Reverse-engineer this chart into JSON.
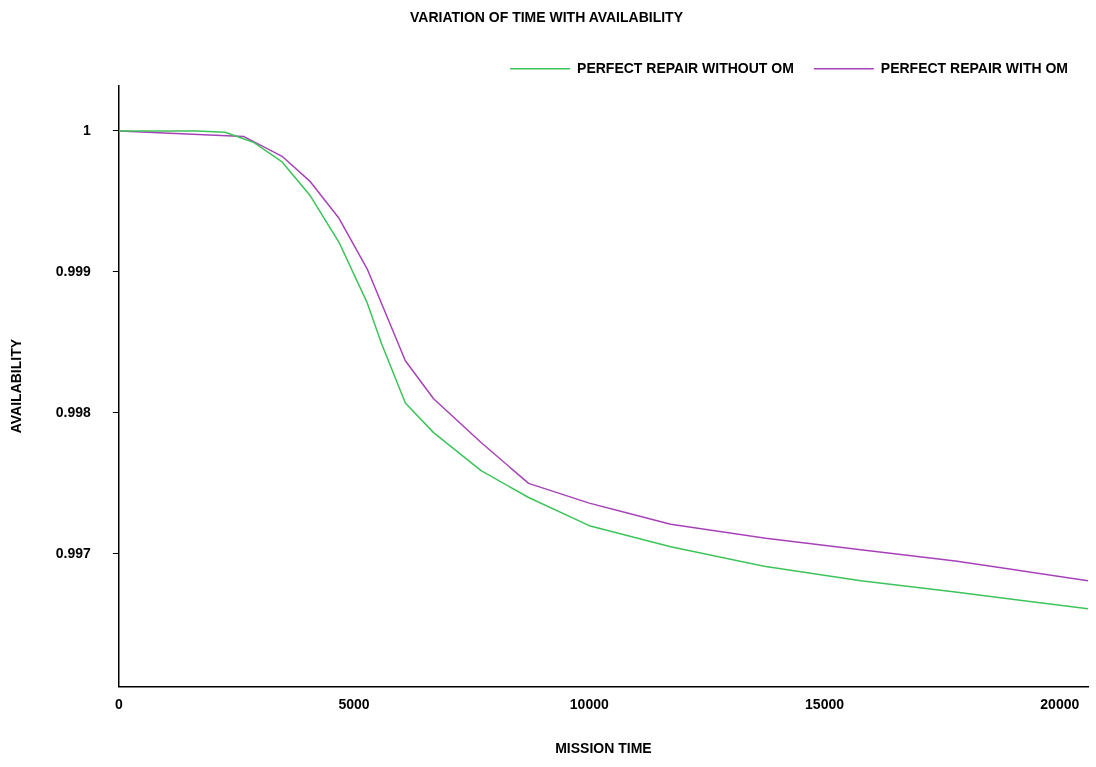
{
  "chart_data": {
    "type": "line",
    "title": "VARIATION OF TIME WITH AVAILABILITY",
    "xlabel": "MISSION TIME",
    "ylabel": "AVAILABILITY",
    "xlim": [
      0,
      20600
    ],
    "xticks": [
      0,
      5000,
      10000,
      15000,
      20000
    ],
    "ylim": [
      0.99606,
      1.00032
    ],
    "yticks": [
      0.997,
      0.998,
      0.999,
      1
    ],
    "grid": false,
    "legend": "top right",
    "marker": "none",
    "line_style": "solid",
    "series": [
      {
        "name": "PERFECT REPAIR WITHOUT OM",
        "color": "#3cc35a",
        "x": [
          0,
          1650,
          2260,
          2860,
          3470,
          4070,
          4680,
          5280,
          5585,
          6090,
          6690,
          7700,
          8710,
          10000,
          11730,
          13750,
          15770,
          17780,
          20600
        ],
        "values": [
          1,
          1,
          0.99999,
          0.99992,
          0.99978,
          0.99954,
          0.99921,
          0.99878,
          0.99849,
          0.99807,
          0.99786,
          0.99759,
          0.9974,
          0.9972,
          0.99705,
          0.99691,
          0.99681,
          0.99673,
          0.99661
        ]
      },
      {
        "name": "PERFECT REPAIR WITH OM",
        "color": "#a642b8",
        "x": [
          0,
          2660,
          3470,
          4070,
          4680,
          5280,
          6090,
          6690,
          7700,
          8710,
          10000,
          11730,
          13750,
          15770,
          17780,
          20600
        ],
        "values": [
          1,
          0.99996,
          0.99982,
          0.99964,
          0.99938,
          0.99902,
          0.99837,
          0.9981,
          0.99779,
          0.9975,
          0.99736,
          0.99721,
          0.99711,
          0.99703,
          0.99695,
          0.99681
        ]
      }
    ]
  }
}
